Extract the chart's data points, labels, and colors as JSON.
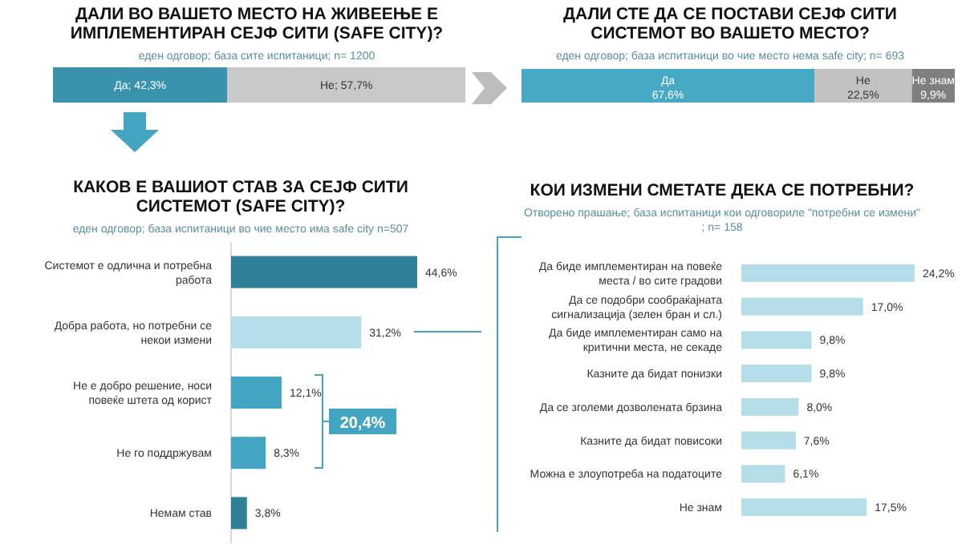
{
  "chart_data": [
    {
      "type": "bar",
      "title": "ДАЛИ ВО ВАШЕТО МЕСТО НА ЖИВЕЕЊЕ Е ИМПЛЕМЕНТИРАН СЕЈФ СИТИ (SAFE CITY)?",
      "subtitle": "еден одговор; база сите испитаници; n= 1200",
      "orientation": "horizontal",
      "stacked": true,
      "categories": [
        null
      ],
      "xlim": [
        0,
        100
      ],
      "tick_labels": false,
      "series": [
        {
          "color": "#3a93ad",
          "values": [
            42.3
          ],
          "value_labels": [
            "Да; 42,3%"
          ]
        },
        {
          "color": "#c8c8c8",
          "values": [
            57.7
          ],
          "value_labels": [
            "Не; 57,7%"
          ]
        }
      ]
    },
    {
      "type": "bar",
      "title": "ДАЛИ СТЕ ДА СЕ ПОСТАВИ СЕЈФ СИТИ СИСТЕМОТ ВО ВАШЕТО МЕСТО?",
      "subtitle": "еден одговор; база испитаници во чие место нема safe city; n= 693",
      "orientation": "horizontal",
      "stacked": true,
      "categories": [
        null
      ],
      "xlim": [
        0,
        100
      ],
      "tick_labels": false,
      "series": [
        {
          "name": "Да",
          "color": "#48a9c5",
          "values": [
            67.6
          ],
          "value_labels": [
            "67,6%"
          ]
        },
        {
          "name": "Не",
          "color": "#c2c2c2",
          "values": [
            22.5
          ],
          "value_labels": [
            "22,5%"
          ]
        },
        {
          "name": "Не знам",
          "color": "#7f7f7f",
          "values": [
            9.9
          ],
          "value_labels": [
            "9,9%"
          ]
        }
      ]
    },
    {
      "type": "bar",
      "title": "КАКОВ Е ВАШИОТ СТАВ ЗА СЕЈФ СИТИ СИСТЕМОТ (SAFE CITY)?",
      "subtitle": "еден одговор; база испитаници во чие место има safe city n=507",
      "orientation": "horizontal",
      "categories": [
        "Системот е одлична и потребна работа",
        "Добра работа, но потребни се некои измени",
        "Не е добро решение, носи повеќе штета од корист",
        "Не го поддржувам",
        "Немам став"
      ],
      "tick_labels": "y",
      "values": [
        44.6,
        31.2,
        12.1,
        8.3,
        3.8
      ],
      "value_labels": [
        "44,6%",
        "31,2%",
        "12,1%",
        "8,3%",
        "3,8%"
      ],
      "colors": [
        "#2f8199",
        "#b5dde7",
        "#43a5c1",
        "#43a5c1",
        "#2f8199"
      ],
      "annotations": [
        "20,4%"
      ]
    },
    {
      "type": "bar",
      "title": "КОИ ИЗМЕНИ СМЕТАТЕ ДЕКА СЕ ПОТРЕБНИ?",
      "subtitle": "Отворено прашање; база испитаници кои одговориле \"потребни се измени\" ; n= 158",
      "orientation": "horizontal",
      "categories": [
        "Да биде имплементиран на повеќе места / во сите градови",
        "Да се подобри сообраќајната сигнализација (зелен бран и сл.)",
        "Да биде имплементиран само на критични места, не секаде",
        "Казните да бидат понизки",
        "Да се зголеми дозволената брзина",
        "Казните да бидат повисоки",
        "Можна е злоупотреба на податоците",
        "Не знам"
      ],
      "tick_labels": "y",
      "values": [
        24.2,
        17.0,
        9.8,
        9.8,
        8.0,
        7.6,
        6.1,
        17.5
      ],
      "value_labels": [
        "24,2%",
        "17,0%",
        "9,8%",
        "9,8%",
        "8,0%",
        "7,6%",
        "6,1%",
        "17,5%"
      ],
      "colors": [
        "#b5dde7",
        "#b5dde7",
        "#b5dde7",
        "#b5dde7",
        "#b5dde7",
        "#b5dde7",
        "#b5dde7",
        "#b5dde7"
      ]
    }
  ]
}
